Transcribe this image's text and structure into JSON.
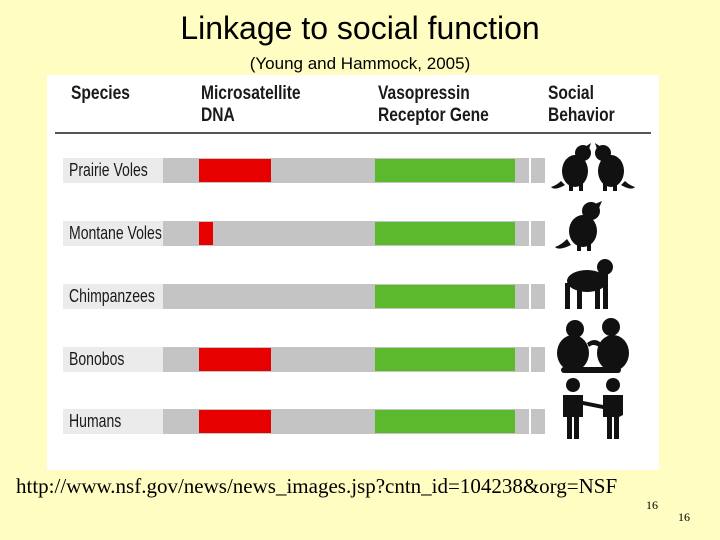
{
  "slide": {
    "title": "Linkage to social function",
    "subtitle": "(Young and Hammock, 2005)",
    "url": "http://www.nsf.gov/news/news_images.jsp?cntn_id=104238&org=NSF",
    "slide_number_subscript": "16",
    "slide_number": "16"
  },
  "figure": {
    "headers": {
      "species": "Species",
      "microsatellite_line1": "Microsatellite",
      "microsatellite_line2": "DNA",
      "vasopressin_line1": "Vasopressin",
      "vasopressin_line2": "Receptor Gene",
      "social_line1": "Social",
      "social_line2": "Behavior"
    },
    "rows": [
      {
        "species": "Prairie Voles",
        "microsatellite_dna_relative_length": 0.3,
        "social_behavior_icon": "two-voles-icon"
      },
      {
        "species": "Montane Voles",
        "microsatellite_dna_relative_length": 0.06,
        "social_behavior_icon": "single-vole-icon"
      },
      {
        "species": "Chimpanzees",
        "microsatellite_dna_relative_length": 0,
        "social_behavior_icon": "chimpanzee-icon"
      },
      {
        "species": "Bonobos",
        "microsatellite_dna_relative_length": 0.3,
        "social_behavior_icon": "bonobos-pair-icon"
      },
      {
        "species": "Humans",
        "microsatellite_dna_relative_length": 0.3,
        "social_behavior_icon": "humans-pair-icon"
      }
    ],
    "colors": {
      "microsatellite_dna": "#e60000",
      "vasopressin_receptor_gene": "#5cb82c",
      "row_bar": "#c4c4c4",
      "slide_background": "#fffdc2"
    }
  }
}
